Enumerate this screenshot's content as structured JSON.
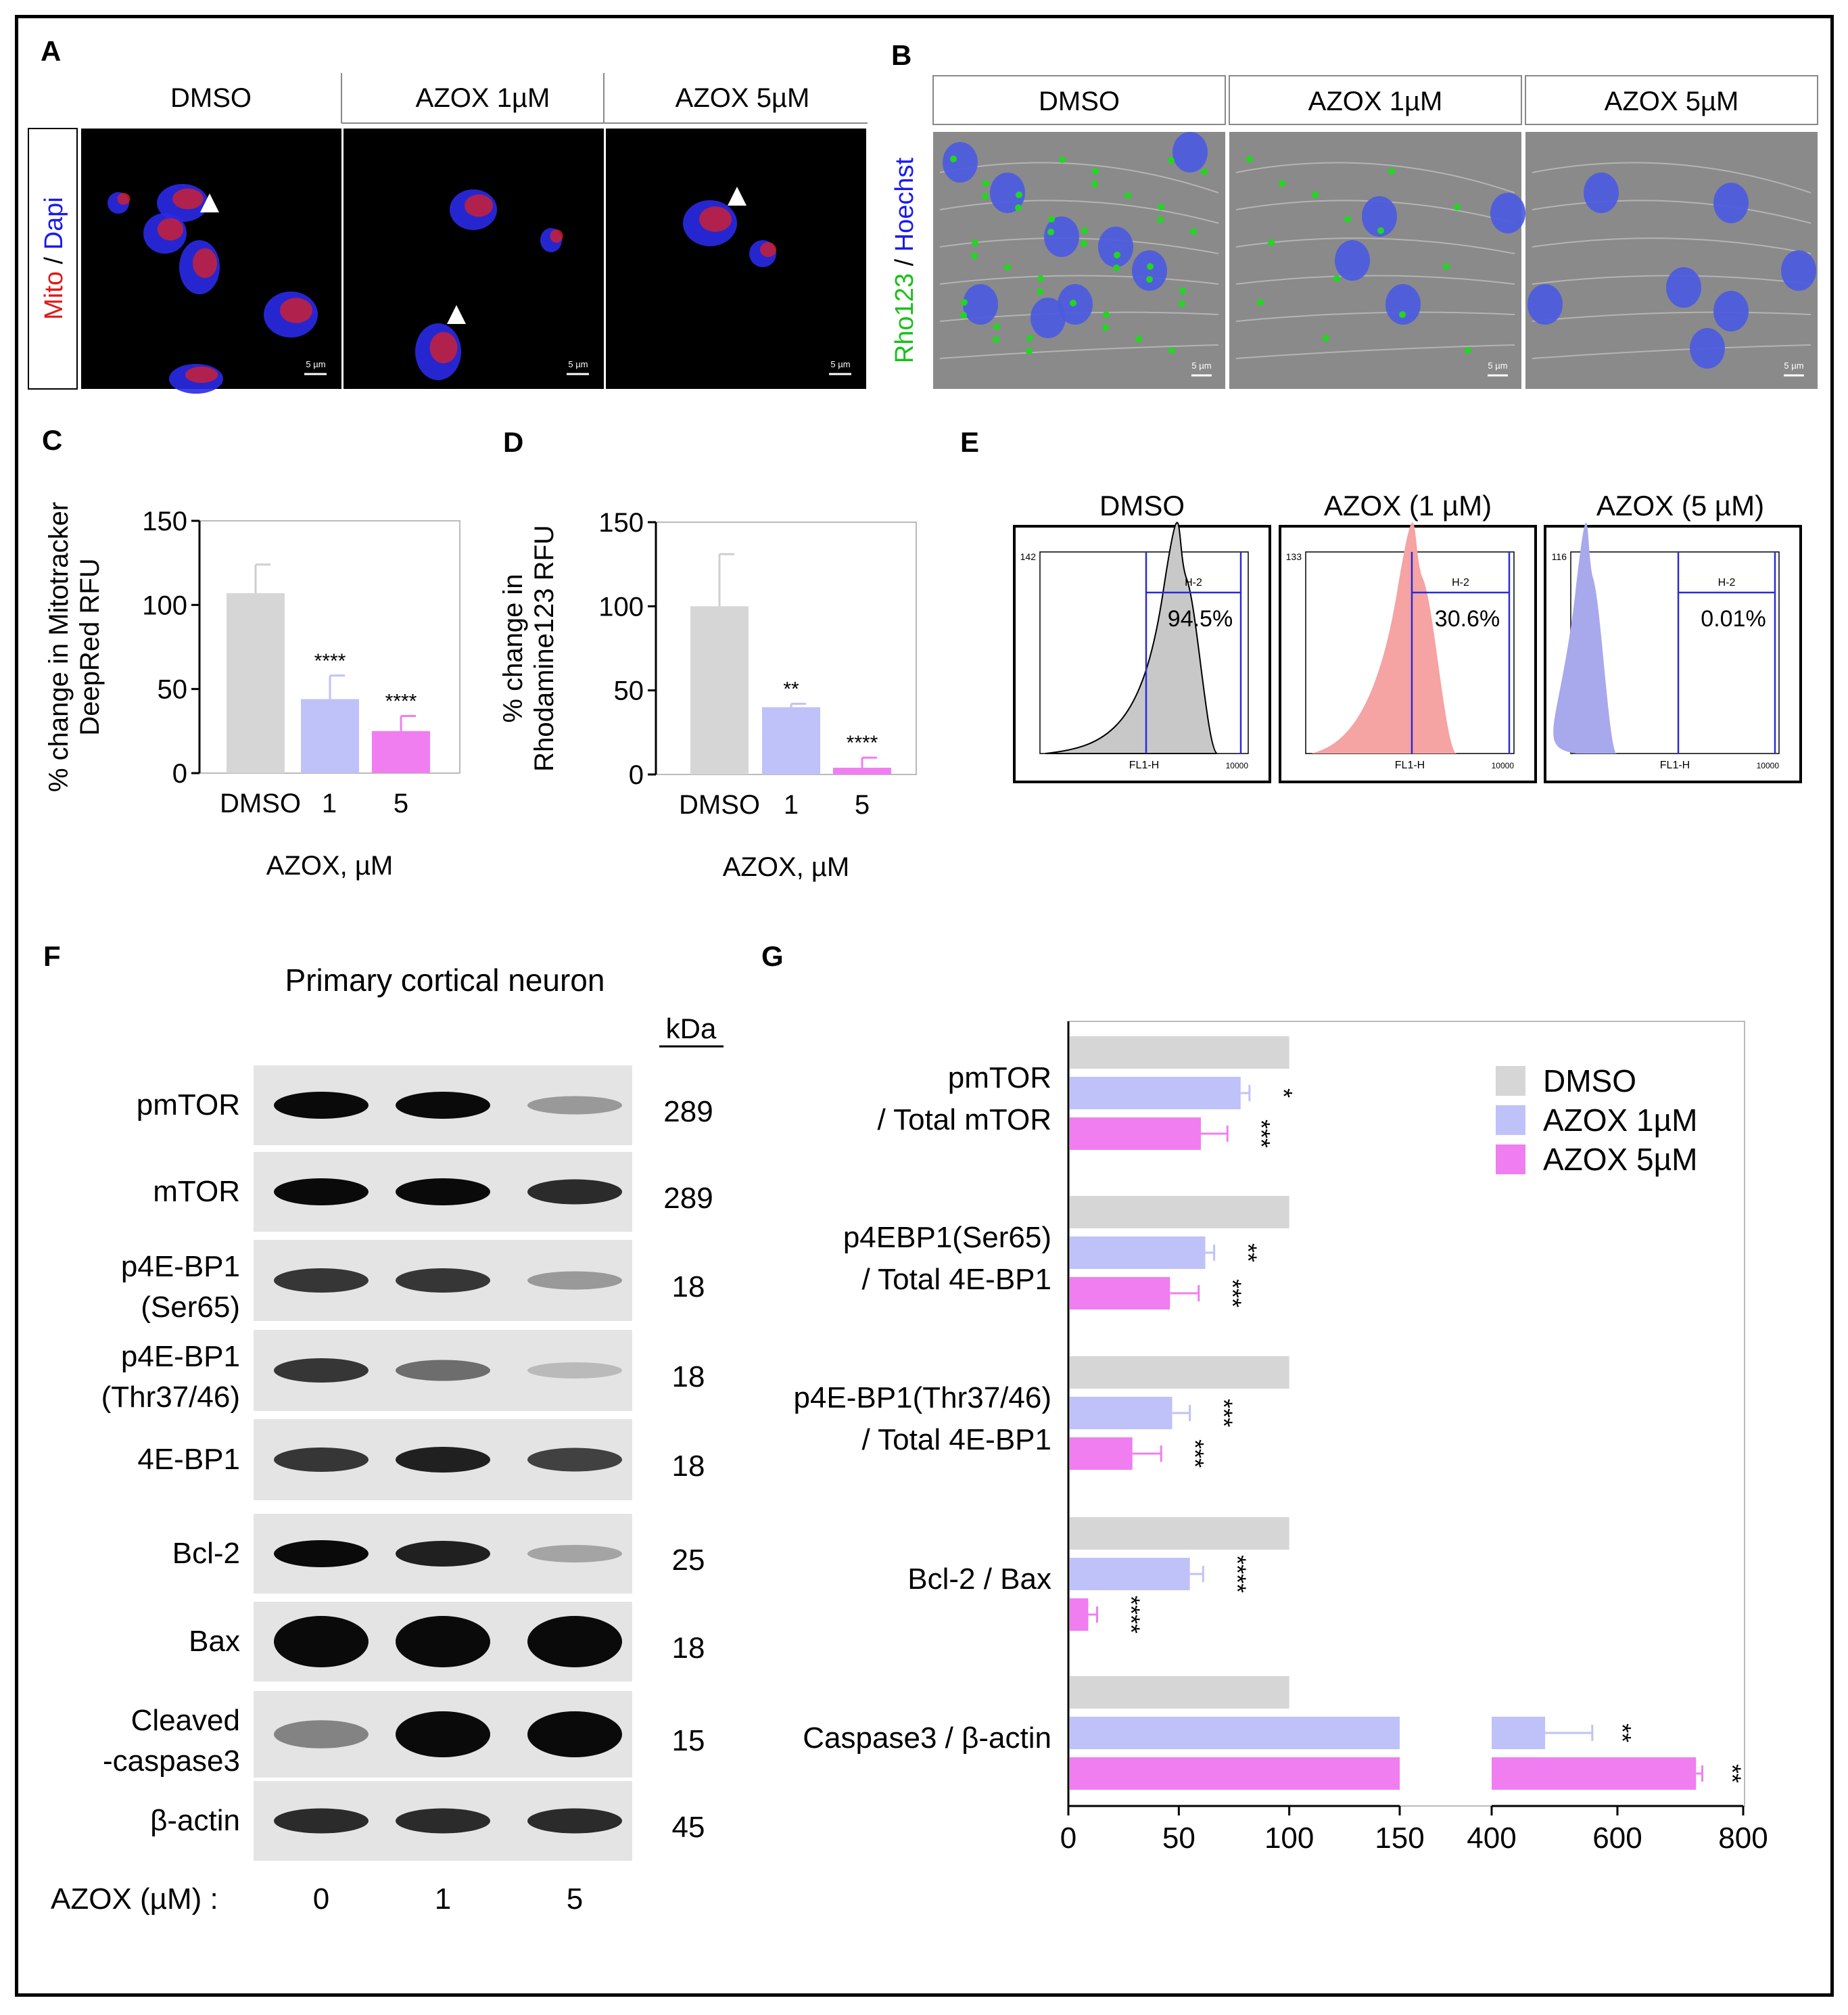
{
  "panel_letters": [
    "A",
    "B",
    "C",
    "D",
    "E",
    "F",
    "G"
  ],
  "panel_a": {
    "headers": [
      "DMSO",
      "AZOX 1µM",
      "AZOX 5µM"
    ],
    "side_label_red": "Mito",
    "side_label_sep": " / ",
    "side_label_blue": "Dapi",
    "scale_bar": "5 µm"
  },
  "panel_b": {
    "headers": [
      "DMSO",
      "AZOX 1µM",
      "AZOX 5µM"
    ],
    "side_label_green": "Rho123",
    "side_label_sep": " / ",
    "side_label_blue": "Hoechst",
    "scale_bar": "5 µm"
  },
  "panel_e": {
    "headers": [
      "DMSO",
      "AZOX (1 µM)",
      "AZOX (5 µM)"
    ],
    "ymax_labels": [
      "142",
      "133",
      "116"
    ],
    "gate_label": "H-2",
    "percents": [
      "94.5%",
      "30.6%",
      "0.01%"
    ],
    "xlabel": "FL1-H",
    "xmax_label": "10000"
  },
  "panel_f": {
    "title": "Primary cortical neuron",
    "kda_header": "kDa",
    "rows": [
      {
        "label": "pmTOR",
        "label2": "",
        "kda": "289"
      },
      {
        "label": "mTOR",
        "label2": "",
        "kda": "289"
      },
      {
        "label": "p4E-BP1",
        "label2": "(Ser65)",
        "kda": "18"
      },
      {
        "label": "p4E-BP1",
        "label2": "(Thr37/46)",
        "kda": "18"
      },
      {
        "label": "4E-BP1",
        "label2": "",
        "kda": "18"
      },
      {
        "label": "Bcl-2",
        "label2": "",
        "kda": "25"
      },
      {
        "label": "Bax",
        "label2": "",
        "kda": "18"
      },
      {
        "label": "Cleaved",
        "label2": "-caspase3",
        "kda": "15"
      },
      {
        "label": "β-actin",
        "label2": "",
        "kda": "45"
      }
    ],
    "azox_label": "AZOX (µM) :",
    "doses": [
      "0",
      "1",
      "5"
    ]
  },
  "colors": {
    "dmso": "#d6d6d6",
    "azox1": "#bfc2f8",
    "azox5": "#f07ef0",
    "flow_red": "#f5a3a3",
    "flow_blue": "#a8a8ec",
    "gate": "#2b2bd6"
  },
  "chart_data": [
    {
      "panel": "C",
      "type": "bar",
      "categories": [
        "DMSO",
        "1",
        "5"
      ],
      "values": [
        107,
        44,
        25
      ],
      "errors": [
        17,
        14,
        9
      ],
      "significance": [
        "",
        "****",
        "****"
      ],
      "ylabel_line1": "% change in Mitotracker",
      "ylabel_line2": "DeepRed RFU",
      "xlabel": "AZOX, µM",
      "ylim": [
        0,
        150
      ],
      "yticks": [
        "0",
        "50",
        "100",
        "150"
      ]
    },
    {
      "panel": "D",
      "type": "bar",
      "categories": [
        "DMSO",
        "1",
        "5"
      ],
      "values": [
        100,
        40,
        4
      ],
      "errors": [
        31,
        2,
        6
      ],
      "significance": [
        "",
        "**",
        "****"
      ],
      "ylabel_line1": "% change in",
      "ylabel_line2": "Rhodamine123 RFU",
      "xlabel": "AZOX, µM",
      "ylim": [
        0,
        150
      ],
      "yticks": [
        "0",
        "50",
        "100",
        "150"
      ]
    },
    {
      "panel": "G",
      "type": "bar",
      "orientation": "horizontal",
      "legend": [
        "DMSO",
        "AZOX 1µM",
        "AZOX 5µM"
      ],
      "legend_position": "top-right",
      "x_axis_break": [
        150,
        400
      ],
      "xticks": [
        "0",
        "50",
        "100",
        "150",
        "400",
        "600",
        "800"
      ],
      "groups": [
        {
          "label1": "pmTOR",
          "label2": "/ Total mTOR",
          "values": [
            100,
            78,
            60
          ],
          "errors": [
            0,
            4,
            12
          ],
          "significance": [
            "",
            "*",
            "***"
          ]
        },
        {
          "label1": "p4EBP1(Ser65)",
          "label2": "/ Total 4E-BP1",
          "values": [
            100,
            62,
            46
          ],
          "errors": [
            0,
            4,
            13
          ],
          "significance": [
            "",
            "**",
            "***"
          ]
        },
        {
          "label1": "p4E-BP1(Thr37/46)",
          "label2": "/ Total 4E-BP1",
          "values": [
            100,
            47,
            29
          ],
          "errors": [
            0,
            8,
            13
          ],
          "significance": [
            "",
            "***",
            "***"
          ]
        },
        {
          "label1": "Bcl-2 / Bax",
          "label2": "",
          "values": [
            100,
            55,
            9
          ],
          "errors": [
            0,
            6,
            4
          ],
          "significance": [
            "",
            "****",
            "****"
          ]
        },
        {
          "label1": "Caspase3 / β-actin",
          "label2": "",
          "values": [
            100,
            485,
            725
          ],
          "errors": [
            0,
            75,
            10
          ],
          "significance": [
            "",
            "**",
            "**"
          ]
        }
      ]
    }
  ]
}
